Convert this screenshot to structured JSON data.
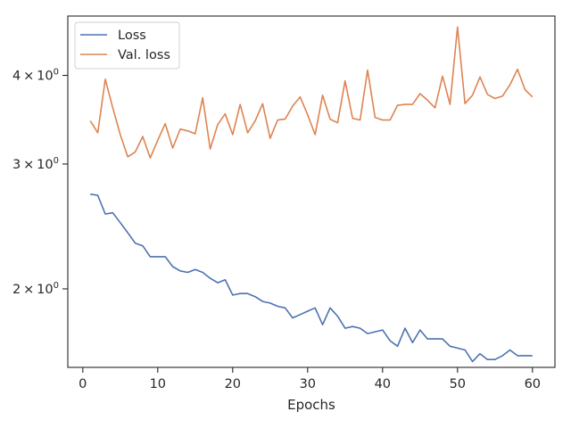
{
  "chart_data": {
    "type": "line",
    "title": "",
    "xlabel": "Epochs",
    "ylabel": "",
    "xlim": [
      -2,
      63
    ],
    "ylim": [
      1.55,
      4.85
    ],
    "yscale": "log",
    "grid": false,
    "legend": "top-left",
    "x_ticks": [
      {
        "value": 0,
        "label": "0"
      },
      {
        "value": 10,
        "label": "10"
      },
      {
        "value": 20,
        "label": "20"
      },
      {
        "value": 30,
        "label": "30"
      },
      {
        "value": 40,
        "label": "40"
      },
      {
        "value": 50,
        "label": "50"
      },
      {
        "value": 60,
        "label": "60"
      }
    ],
    "y_ticks": [
      {
        "value": 2,
        "base": "2",
        "exp": "0"
      },
      {
        "value": 3,
        "base": "3",
        "exp": "0"
      },
      {
        "value": 4,
        "base": "4",
        "exp": "0"
      }
    ],
    "x": [
      1,
      2,
      3,
      4,
      5,
      6,
      7,
      8,
      9,
      10,
      11,
      12,
      13,
      14,
      15,
      16,
      17,
      18,
      19,
      20,
      21,
      22,
      23,
      24,
      25,
      26,
      27,
      28,
      29,
      30,
      31,
      32,
      33,
      34,
      35,
      36,
      37,
      38,
      39,
      40,
      41,
      42,
      43,
      44,
      45,
      46,
      47,
      48,
      49,
      50,
      51,
      52,
      53,
      54,
      55,
      56,
      57,
      58,
      59,
      60
    ],
    "series": [
      {
        "name": "Loss",
        "color": "#4c72b0",
        "values": [
          2.72,
          2.71,
          2.55,
          2.56,
          2.48,
          2.4,
          2.32,
          2.3,
          2.22,
          2.22,
          2.22,
          2.15,
          2.12,
          2.11,
          2.13,
          2.11,
          2.07,
          2.04,
          2.06,
          1.96,
          1.97,
          1.97,
          1.95,
          1.92,
          1.91,
          1.89,
          1.88,
          1.82,
          1.84,
          1.86,
          1.88,
          1.78,
          1.88,
          1.83,
          1.76,
          1.77,
          1.76,
          1.73,
          1.74,
          1.75,
          1.69,
          1.66,
          1.76,
          1.68,
          1.75,
          1.7,
          1.7,
          1.7,
          1.66,
          1.65,
          1.64,
          1.58,
          1.62,
          1.59,
          1.59,
          1.61,
          1.64,
          1.61,
          1.61,
          1.61
        ]
      },
      {
        "name": "Val. loss",
        "color": "#dd8452",
        "values": [
          3.45,
          3.32,
          3.95,
          3.6,
          3.3,
          3.07,
          3.12,
          3.28,
          3.06,
          3.24,
          3.42,
          3.16,
          3.36,
          3.34,
          3.31,
          3.72,
          3.15,
          3.41,
          3.53,
          3.3,
          3.64,
          3.32,
          3.45,
          3.65,
          3.26,
          3.46,
          3.47,
          3.62,
          3.73,
          3.52,
          3.3,
          3.75,
          3.47,
          3.43,
          3.93,
          3.48,
          3.46,
          4.07,
          3.49,
          3.46,
          3.46,
          3.63,
          3.64,
          3.64,
          3.77,
          3.69,
          3.6,
          3.99,
          3.64,
          4.68,
          3.65,
          3.75,
          3.98,
          3.76,
          3.71,
          3.74,
          3.88,
          4.08,
          3.82,
          3.73
        ]
      }
    ]
  }
}
